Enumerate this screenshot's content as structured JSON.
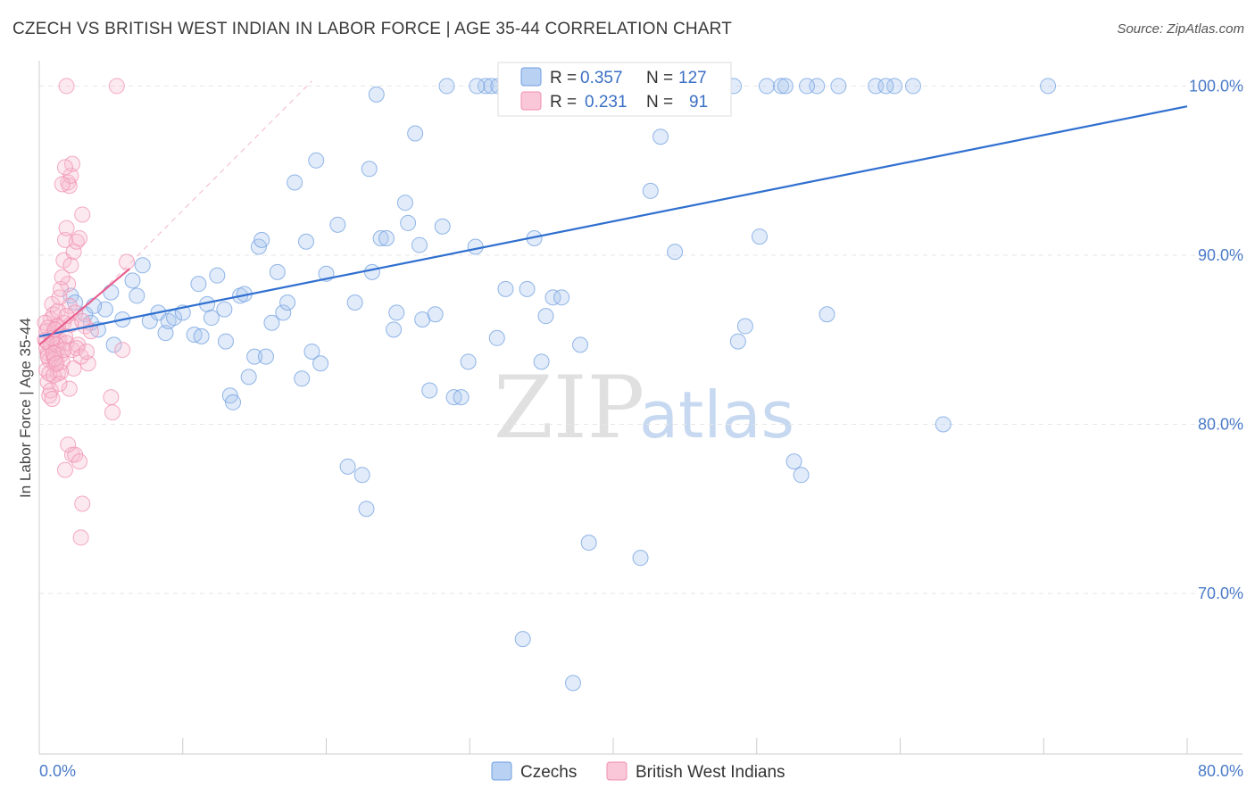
{
  "title": "CZECH VS BRITISH WEST INDIAN IN LABOR FORCE | AGE 35-44 CORRELATION CHART",
  "source": "Source: ZipAtlas.com",
  "watermark": {
    "zip": "ZIP",
    "atlas": "atlas"
  },
  "colors": {
    "blue": "#6f9fe0",
    "blue_line": "#2f6fd0",
    "pink": "#f08fb0",
    "pink_line": "#e8608f",
    "grid": "#e6e6e6"
  },
  "stats": {
    "blue": {
      "r_label": "R =",
      "r": "0.357",
      "n_label": "N =",
      "n": "127"
    },
    "pink": {
      "r_label": "R =",
      "r": "0.231",
      "n_label": "N =",
      "n": "91"
    }
  },
  "chart_data": {
    "type": "scatter",
    "title": "CZECH VS BRITISH WEST INDIAN IN LABOR FORCE | AGE 35-44 CORRELATION CHART",
    "xlabel": "",
    "ylabel": "In Labor Force | Age 35-44",
    "xlim": [
      0,
      80
    ],
    "ylim": [
      60.5,
      101.5
    ],
    "x_tick_labels": [
      {
        "value": 0,
        "label": "0.0%"
      },
      {
        "value": 80,
        "label": "80.0%"
      }
    ],
    "y_tick_labels": [
      {
        "value": 70,
        "label": "70.0%"
      },
      {
        "value": 80,
        "label": "80.0%"
      },
      {
        "value": 90,
        "label": "90.0%"
      },
      {
        "value": 100,
        "label": "100.0%"
      }
    ],
    "legend": [
      "Czechs",
      "British West Indians"
    ],
    "legend_position": "bottom-center",
    "series": [
      {
        "name": "Czechs",
        "color": "#6f9fe0",
        "trend": {
          "x0": 0.0,
          "y0": 85.2,
          "x1": 80.0,
          "y1": 98.8
        },
        "points": [
          [
            2.2,
            87.6
          ],
          [
            2.5,
            87.2
          ],
          [
            3.2,
            86.5
          ],
          [
            3.6,
            86.0
          ],
          [
            4.1,
            85.6
          ],
          [
            4.6,
            86.8
          ],
          [
            3.8,
            87.0
          ],
          [
            5.0,
            87.8
          ],
          [
            5.2,
            84.7
          ],
          [
            5.8,
            86.2
          ],
          [
            6.5,
            88.5
          ],
          [
            6.8,
            87.6
          ],
          [
            7.2,
            89.4
          ],
          [
            7.7,
            86.1
          ],
          [
            8.3,
            86.6
          ],
          [
            8.8,
            85.4
          ],
          [
            9.0,
            86.1
          ],
          [
            9.4,
            86.3
          ],
          [
            10.0,
            86.6
          ],
          [
            10.8,
            85.3
          ],
          [
            11.1,
            88.3
          ],
          [
            11.3,
            85.2
          ],
          [
            11.7,
            87.1
          ],
          [
            12.0,
            86.3
          ],
          [
            12.4,
            88.8
          ],
          [
            12.9,
            86.8
          ],
          [
            13.0,
            84.9
          ],
          [
            13.3,
            81.7
          ],
          [
            13.5,
            81.3
          ],
          [
            14.0,
            87.6
          ],
          [
            14.3,
            87.7
          ],
          [
            14.6,
            82.8
          ],
          [
            15.0,
            84.0
          ],
          [
            15.3,
            90.5
          ],
          [
            15.5,
            90.9
          ],
          [
            15.8,
            84.0
          ],
          [
            16.2,
            86.0
          ],
          [
            16.6,
            89.0
          ],
          [
            17.0,
            86.6
          ],
          [
            17.3,
            87.2
          ],
          [
            17.8,
            94.3
          ],
          [
            18.3,
            82.7
          ],
          [
            18.6,
            90.8
          ],
          [
            19.0,
            84.3
          ],
          [
            19.3,
            95.6
          ],
          [
            19.6,
            83.6
          ],
          [
            20.0,
            88.9
          ],
          [
            20.8,
            91.8
          ],
          [
            21.5,
            77.5
          ],
          [
            22.0,
            87.2
          ],
          [
            22.5,
            77.0
          ],
          [
            22.8,
            75.0
          ],
          [
            23.0,
            95.1
          ],
          [
            23.2,
            89.0
          ],
          [
            23.5,
            99.5
          ],
          [
            23.8,
            91.0
          ],
          [
            24.2,
            91.0
          ],
          [
            24.7,
            85.6
          ],
          [
            24.9,
            86.6
          ],
          [
            25.5,
            93.1
          ],
          [
            25.7,
            91.9
          ],
          [
            26.2,
            97.2
          ],
          [
            26.5,
            90.6
          ],
          [
            26.7,
            86.2
          ],
          [
            27.2,
            82.0
          ],
          [
            27.6,
            86.5
          ],
          [
            28.1,
            91.7
          ],
          [
            28.9,
            81.6
          ],
          [
            29.4,
            81.6
          ],
          [
            28.4,
            100.0
          ],
          [
            29.9,
            83.7
          ],
          [
            30.4,
            90.5
          ],
          [
            31.1,
            100.0
          ],
          [
            31.5,
            100.0
          ],
          [
            32.0,
            100.0
          ],
          [
            32.9,
            100.0
          ],
          [
            31.9,
            85.1
          ],
          [
            32.5,
            88.0
          ],
          [
            33.2,
            100.0
          ],
          [
            34.0,
            88.0
          ],
          [
            34.5,
            91.0
          ],
          [
            35.0,
            83.7
          ],
          [
            35.3,
            86.4
          ],
          [
            35.8,
            87.5
          ],
          [
            36.4,
            87.5
          ],
          [
            37.0,
            100.0
          ],
          [
            38.0,
            100.0
          ],
          [
            37.7,
            84.7
          ],
          [
            38.3,
            73.0
          ],
          [
            39.4,
            100.0
          ],
          [
            40.2,
            100.0
          ],
          [
            41.2,
            100.0
          ],
          [
            41.9,
            72.1
          ],
          [
            42.6,
            93.8
          ],
          [
            43.3,
            97.0
          ],
          [
            44.3,
            90.2
          ],
          [
            44.8,
            100.0
          ],
          [
            45.6,
            100.0
          ],
          [
            46.6,
            100.0
          ],
          [
            47.3,
            100.0
          ],
          [
            48.4,
            100.0
          ],
          [
            48.7,
            84.9
          ],
          [
            49.2,
            85.8
          ],
          [
            50.2,
            91.1
          ],
          [
            50.7,
            100.0
          ],
          [
            51.7,
            100.0
          ],
          [
            52.6,
            77.8
          ],
          [
            53.1,
            77.0
          ],
          [
            54.9,
            86.5
          ],
          [
            55.7,
            100.0
          ],
          [
            58.3,
            100.0
          ],
          [
            59.6,
            100.0
          ],
          [
            60.9,
            100.0
          ],
          [
            63.0,
            80.0
          ],
          [
            70.3,
            100.0
          ],
          [
            33.7,
            67.3
          ],
          [
            37.2,
            64.7
          ],
          [
            52.0,
            100.0
          ],
          [
            54.2,
            100.0
          ],
          [
            36.6,
            100.0
          ],
          [
            44.0,
            100.0
          ],
          [
            46.0,
            100.0
          ],
          [
            30.5,
            100.0
          ],
          [
            34.8,
            100.0
          ],
          [
            53.5,
            100.0
          ],
          [
            59.0,
            100.0
          ],
          [
            41.5,
            100.0
          ]
        ]
      },
      {
        "name": "British West Indians",
        "color": "#f08fb0",
        "trend": {
          "x0": 0.0,
          "y0": 84.7,
          "x1": 6.3,
          "y1": 89.2
        },
        "points": [
          [
            0.4,
            85.0
          ],
          [
            0.5,
            84.5
          ],
          [
            0.6,
            84.2
          ],
          [
            0.7,
            83.8
          ],
          [
            0.8,
            84.6
          ],
          [
            0.9,
            85.3
          ],
          [
            1.0,
            84.0
          ],
          [
            1.1,
            83.5
          ],
          [
            1.2,
            85.8
          ],
          [
            1.3,
            84.9
          ],
          [
            0.5,
            83.2
          ],
          [
            0.6,
            82.5
          ],
          [
            0.7,
            81.7
          ],
          [
            0.8,
            86.2
          ],
          [
            0.9,
            87.1
          ],
          [
            1.0,
            86.5
          ],
          [
            1.1,
            85.6
          ],
          [
            1.2,
            84.3
          ],
          [
            1.3,
            83.0
          ],
          [
            1.4,
            85.0
          ],
          [
            1.5,
            84.1
          ],
          [
            1.6,
            83.7
          ],
          [
            1.7,
            86.0
          ],
          [
            1.8,
            85.2
          ],
          [
            1.9,
            84.8
          ],
          [
            2.0,
            88.3
          ],
          [
            2.1,
            87.0
          ],
          [
            2.2,
            85.9
          ],
          [
            2.3,
            84.4
          ],
          [
            2.4,
            83.3
          ],
          [
            0.4,
            86.0
          ],
          [
            0.5,
            85.5
          ],
          [
            0.6,
            84.0
          ],
          [
            0.7,
            83.0
          ],
          [
            0.8,
            82.0
          ],
          [
            0.9,
            81.5
          ],
          [
            1.0,
            82.9
          ],
          [
            1.1,
            83.9
          ],
          [
            1.2,
            84.7
          ],
          [
            1.3,
            86.7
          ],
          [
            1.4,
            87.5
          ],
          [
            1.5,
            88.0
          ],
          [
            1.6,
            88.7
          ],
          [
            1.7,
            89.7
          ],
          [
            1.8,
            90.9
          ],
          [
            1.9,
            91.6
          ],
          [
            2.0,
            94.3
          ],
          [
            2.1,
            94.1
          ],
          [
            2.2,
            94.7
          ],
          [
            2.3,
            95.4
          ],
          [
            1.6,
            94.2
          ],
          [
            1.8,
            95.2
          ],
          [
            2.2,
            89.4
          ],
          [
            2.4,
            90.2
          ],
          [
            2.6,
            90.8
          ],
          [
            2.8,
            91.0
          ],
          [
            3.0,
            92.4
          ],
          [
            2.1,
            82.1
          ],
          [
            2.3,
            78.2
          ],
          [
            2.5,
            78.2
          ],
          [
            1.8,
            77.3
          ],
          [
            2.0,
            78.8
          ],
          [
            2.8,
            77.8
          ],
          [
            3.0,
            75.3
          ],
          [
            2.9,
            73.3
          ],
          [
            2.7,
            84.7
          ],
          [
            3.2,
            85.8
          ],
          [
            3.4,
            83.6
          ],
          [
            3.6,
            85.5
          ],
          [
            5.0,
            81.6
          ],
          [
            5.1,
            80.7
          ],
          [
            5.8,
            84.4
          ],
          [
            6.1,
            89.6
          ],
          [
            1.9,
            100.0
          ],
          [
            5.4,
            100.0
          ],
          [
            2.5,
            86.6
          ],
          [
            3.0,
            86.1
          ],
          [
            1.5,
            83.1
          ],
          [
            1.7,
            84.4
          ],
          [
            1.9,
            86.4
          ],
          [
            1.3,
            85.8
          ],
          [
            0.5,
            84.9
          ],
          [
            0.6,
            85.7
          ],
          [
            0.9,
            85.1
          ],
          [
            1.0,
            84.2
          ],
          [
            1.4,
            82.4
          ],
          [
            1.2,
            83.6
          ],
          [
            2.6,
            84.5
          ],
          [
            2.9,
            84.0
          ],
          [
            3.3,
            84.3
          ],
          [
            1.1,
            85.6
          ]
        ]
      }
    ]
  }
}
